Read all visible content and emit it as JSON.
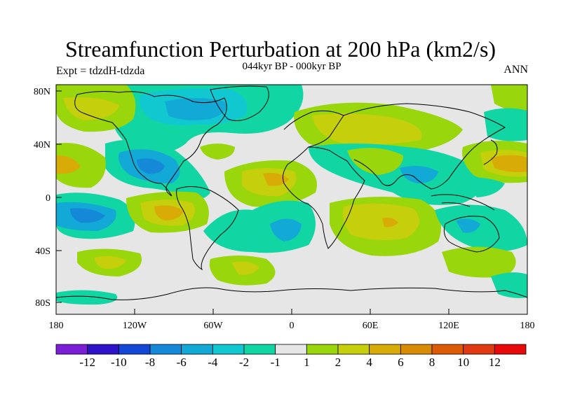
{
  "figure": {
    "title": "Streamfunction Perturbation at 200 hPa (km2/s)",
    "subtitle": "044kyr BP - 000kyr BP",
    "left_label": "Expt = tdzdH-tdzda",
    "right_label": "ANN"
  },
  "axes": {
    "lat_labels": [
      "80N",
      "40N",
      "0",
      "40S",
      "80S"
    ],
    "lon_labels": [
      "180",
      "120W",
      "60W",
      "0",
      "60E",
      "120E",
      "180"
    ]
  },
  "colorbar": {
    "labels": [
      "-12",
      "-10",
      "-8",
      "-6",
      "-4",
      "-2",
      "-1",
      "1",
      "2",
      "4",
      "6",
      "8",
      "10",
      "12"
    ],
    "colors": [
      "#7a1fd6",
      "#2d14c8",
      "#1547d6",
      "#1688d8",
      "#12a9d6",
      "#12c8d0",
      "#11d6a4",
      "#e6e6e6",
      "#99d60b",
      "#c6cf0b",
      "#d8ab07",
      "#d88b07",
      "#dd5a07",
      "#e03a10",
      "#e60a0a"
    ]
  },
  "colors": {
    "neutral": "#e6e6e6",
    "green": "#11d6a4",
    "teal": "#12c8d0",
    "cyan": "#12a9d6",
    "blue": "#1688d8",
    "lime": "#99d60b",
    "yellow": "#c6cf0b",
    "orange": "#d8ab07"
  }
}
